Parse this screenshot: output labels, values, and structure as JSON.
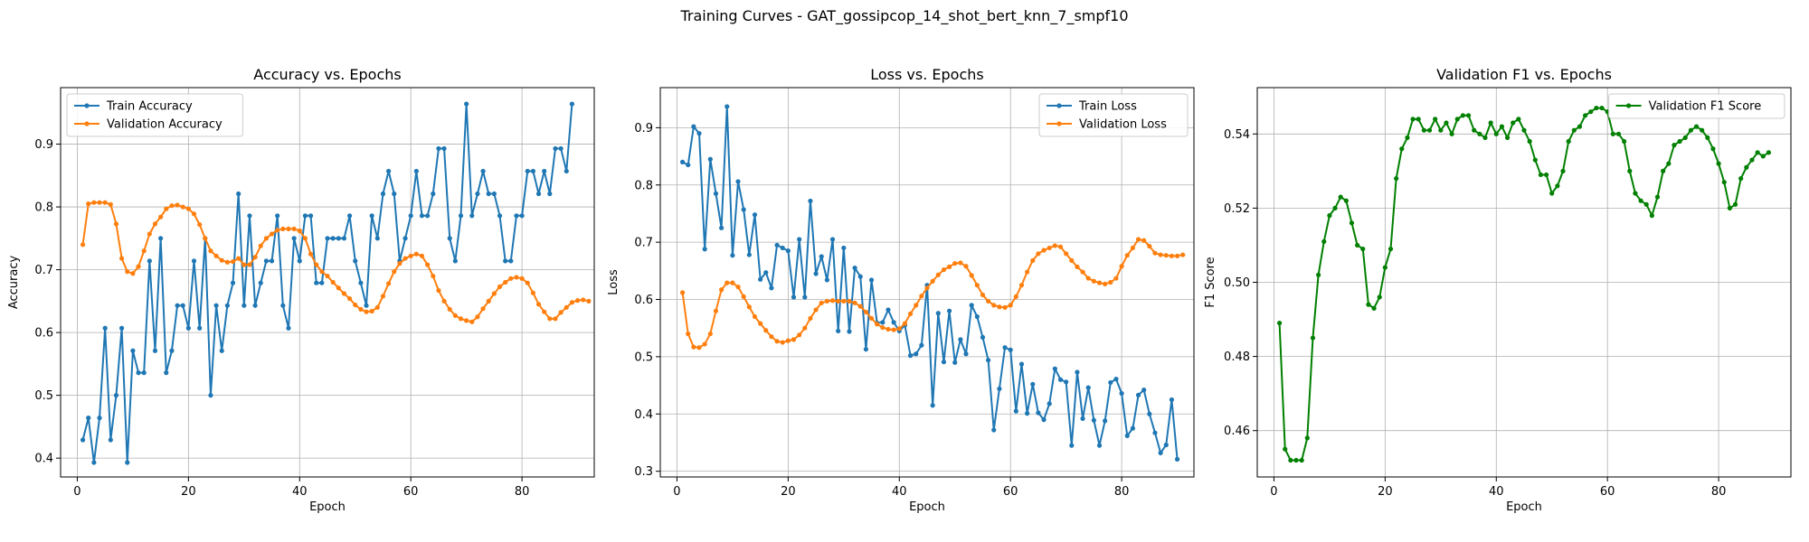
{
  "figure_title": "Training Curves - GAT_gossipcop_14_shot_bert_knn_7_smpf10",
  "colors": {
    "blue": "#1f77b4",
    "orange": "#ff7f0e",
    "green": "#008000",
    "grid": "#b0b0b0"
  },
  "chart_data": [
    {
      "type": "line",
      "title": "Accuracy vs. Epochs",
      "xlabel": "Epoch",
      "ylabel": "Accuracy",
      "xlim": [
        -3,
        93
      ],
      "ylim": [
        0.37,
        0.99
      ],
      "xticks": [
        0,
        20,
        40,
        60,
        80
      ],
      "yticks": [
        0.4,
        0.5,
        0.6,
        0.7,
        0.8,
        0.9
      ],
      "grid": true,
      "legend_position": "upper left",
      "series": [
        {
          "name": "Train Accuracy",
          "color": "#1f77b4",
          "values": [
            0.429,
            0.464,
            0.393,
            0.464,
            0.607,
            0.429,
            0.5,
            0.607,
            0.393,
            0.571,
            0.536,
            0.536,
            0.714,
            0.571,
            0.75,
            0.536,
            0.571,
            0.643,
            0.643,
            0.607,
            0.714,
            0.607,
            0.75,
            0.5,
            0.643,
            0.571,
            0.643,
            0.679,
            0.821,
            0.643,
            0.786,
            0.643,
            0.679,
            0.714,
            0.714,
            0.786,
            0.643,
            0.607,
            0.75,
            0.714,
            0.786,
            0.786,
            0.679,
            0.679,
            0.75,
            0.75,
            0.75,
            0.75,
            0.786,
            0.714,
            0.679,
            0.643,
            0.786,
            0.75,
            0.821,
            0.857,
            0.821,
            0.714,
            0.75,
            0.786,
            0.857,
            0.786,
            0.786,
            0.821,
            0.893,
            0.893,
            0.75,
            0.714,
            0.786,
            0.964,
            0.786,
            0.821,
            0.857,
            0.821,
            0.821,
            0.786,
            0.714,
            0.714,
            0.786,
            0.786,
            0.857,
            0.857,
            0.821,
            0.857,
            0.821,
            0.893,
            0.893,
            0.857,
            0.964
          ]
        },
        {
          "name": "Validation Accuracy",
          "color": "#ff7f0e",
          "values": [
            0.74,
            0.805,
            0.807,
            0.807,
            0.807,
            0.804,
            0.773,
            0.718,
            0.697,
            0.694,
            0.705,
            0.73,
            0.757,
            0.773,
            0.784,
            0.797,
            0.802,
            0.803,
            0.8,
            0.797,
            0.789,
            0.772,
            0.75,
            0.73,
            0.722,
            0.715,
            0.712,
            0.713,
            0.718,
            0.708,
            0.708,
            0.72,
            0.738,
            0.75,
            0.757,
            0.763,
            0.765,
            0.765,
            0.765,
            0.762,
            0.75,
            0.725,
            0.708,
            0.697,
            0.69,
            0.68,
            0.671,
            0.662,
            0.654,
            0.644,
            0.637,
            0.633,
            0.634,
            0.64,
            0.658,
            0.678,
            0.697,
            0.71,
            0.718,
            0.722,
            0.725,
            0.722,
            0.708,
            0.69,
            0.667,
            0.65,
            0.637,
            0.627,
            0.622,
            0.619,
            0.617,
            0.625,
            0.638,
            0.65,
            0.662,
            0.673,
            0.68,
            0.686,
            0.688,
            0.686,
            0.679,
            0.663,
            0.645,
            0.633,
            0.622,
            0.622,
            0.632,
            0.64,
            0.648,
            0.651,
            0.652,
            0.65
          ]
        }
      ]
    },
    {
      "type": "line",
      "title": "Loss vs. Epochs",
      "xlabel": "Epoch",
      "ylabel": "Loss",
      "xlim": [
        -3,
        93
      ],
      "ylim": [
        0.29,
        0.97
      ],
      "xticks": [
        0,
        20,
        40,
        60,
        80
      ],
      "yticks": [
        0.3,
        0.4,
        0.5,
        0.6,
        0.7,
        0.8,
        0.9
      ],
      "grid": true,
      "legend_position": "upper right",
      "series": [
        {
          "name": "Train Loss",
          "color": "#1f77b4",
          "values": [
            0.84,
            0.835,
            0.902,
            0.89,
            0.688,
            0.845,
            0.785,
            0.725,
            0.937,
            0.677,
            0.806,
            0.757,
            0.678,
            0.748,
            0.635,
            0.647,
            0.62,
            0.695,
            0.69,
            0.685,
            0.604,
            0.705,
            0.604,
            0.772,
            0.645,
            0.675,
            0.634,
            0.705,
            0.545,
            0.69,
            0.544,
            0.655,
            0.64,
            0.513,
            0.634,
            0.559,
            0.56,
            0.582,
            0.56,
            0.545,
            0.555,
            0.502,
            0.505,
            0.52,
            0.625,
            0.415,
            0.576,
            0.491,
            0.58,
            0.49,
            0.53,
            0.505,
            0.59,
            0.57,
            0.534,
            0.494,
            0.372,
            0.444,
            0.516,
            0.512,
            0.405,
            0.487,
            0.401,
            0.452,
            0.402,
            0.39,
            0.418,
            0.479,
            0.46,
            0.456,
            0.345,
            0.473,
            0.392,
            0.446,
            0.389,
            0.345,
            0.388,
            0.455,
            0.461,
            0.436,
            0.362,
            0.375,
            0.433,
            0.442,
            0.4,
            0.367,
            0.332,
            0.346,
            0.425,
            0.321
          ]
        },
        {
          "name": "Validation Loss",
          "color": "#ff7f0e",
          "values": [
            0.612,
            0.54,
            0.517,
            0.516,
            0.522,
            0.54,
            0.58,
            0.617,
            0.629,
            0.629,
            0.622,
            0.605,
            0.587,
            0.57,
            0.558,
            0.546,
            0.535,
            0.527,
            0.525,
            0.528,
            0.53,
            0.538,
            0.55,
            0.567,
            0.582,
            0.594,
            0.597,
            0.598,
            0.597,
            0.597,
            0.597,
            0.594,
            0.588,
            0.578,
            0.567,
            0.557,
            0.551,
            0.548,
            0.547,
            0.549,
            0.558,
            0.575,
            0.59,
            0.606,
            0.62,
            0.632,
            0.643,
            0.652,
            0.657,
            0.663,
            0.664,
            0.658,
            0.642,
            0.625,
            0.608,
            0.597,
            0.59,
            0.587,
            0.586,
            0.59,
            0.605,
            0.625,
            0.648,
            0.668,
            0.68,
            0.686,
            0.69,
            0.694,
            0.692,
            0.68,
            0.668,
            0.657,
            0.648,
            0.637,
            0.632,
            0.629,
            0.627,
            0.63,
            0.637,
            0.658,
            0.677,
            0.69,
            0.705,
            0.703,
            0.693,
            0.681,
            0.678,
            0.677,
            0.676,
            0.676,
            0.678
          ]
        }
      ]
    },
    {
      "type": "line",
      "title": "Validation F1 vs. Epochs",
      "xlabel": "Epoch",
      "ylabel": "F1 Score",
      "xlim": [
        -3,
        93
      ],
      "ylim": [
        0.4475,
        0.5525
      ],
      "xticks": [
        0,
        20,
        40,
        60,
        80
      ],
      "yticks": [
        0.46,
        0.48,
        0.5,
        0.52,
        0.54
      ],
      "grid": true,
      "legend_position": "upper right",
      "series": [
        {
          "name": "Validation F1 Score",
          "color": "#008000",
          "values": [
            0.489,
            0.455,
            0.452,
            0.452,
            0.452,
            0.458,
            0.485,
            0.502,
            0.511,
            0.518,
            0.52,
            0.523,
            0.522,
            0.516,
            0.51,
            0.509,
            0.494,
            0.493,
            0.496,
            0.504,
            0.509,
            0.528,
            0.536,
            0.539,
            0.544,
            0.544,
            0.541,
            0.541,
            0.544,
            0.541,
            0.543,
            0.54,
            0.544,
            0.545,
            0.545,
            0.541,
            0.54,
            0.539,
            0.543,
            0.54,
            0.542,
            0.539,
            0.543,
            0.544,
            0.541,
            0.538,
            0.533,
            0.529,
            0.529,
            0.524,
            0.526,
            0.53,
            0.538,
            0.541,
            0.542,
            0.545,
            0.546,
            0.547,
            0.547,
            0.546,
            0.54,
            0.54,
            0.538,
            0.53,
            0.524,
            0.522,
            0.521,
            0.518,
            0.523,
            0.53,
            0.532,
            0.537,
            0.538,
            0.539,
            0.541,
            0.542,
            0.541,
            0.539,
            0.536,
            0.532,
            0.527,
            0.52,
            0.521,
            0.528,
            0.531,
            0.533,
            0.535,
            0.534,
            0.535
          ]
        }
      ]
    }
  ]
}
